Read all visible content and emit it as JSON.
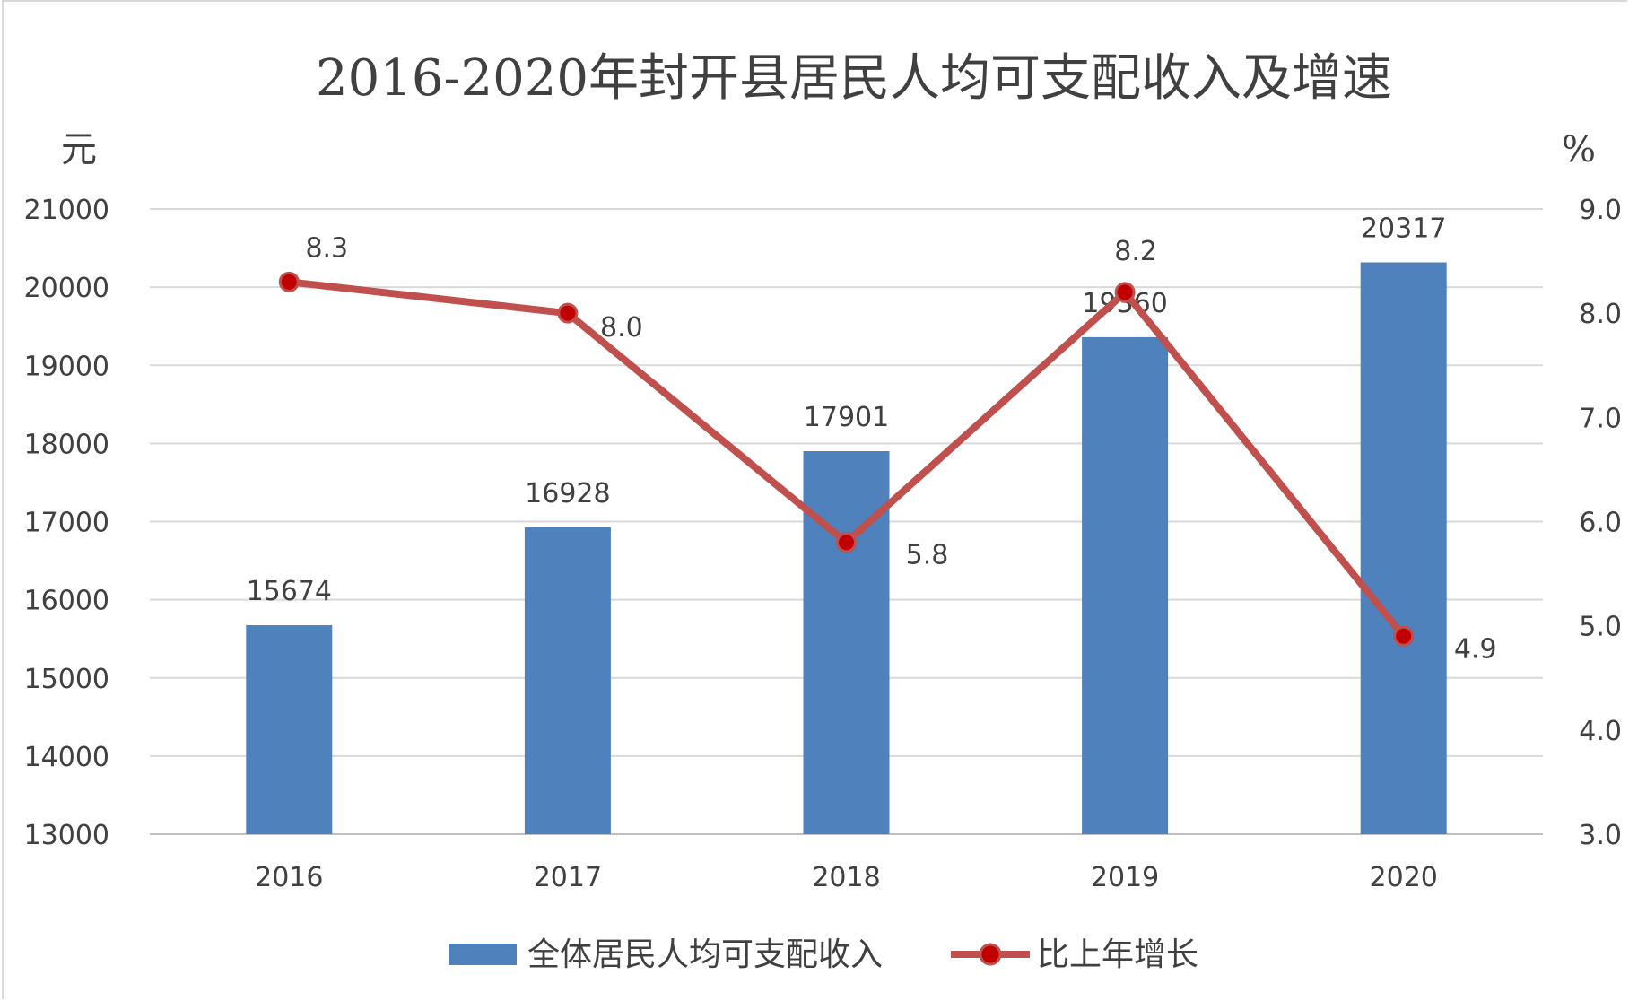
{
  "chart_data": {
    "type": "bar",
    "title": "2016-2020年封开县居民人均可支配收入及增速",
    "ylabel": "元",
    "y2label": "%",
    "categories": [
      "2016",
      "2017",
      "2018",
      "2019",
      "2020"
    ],
    "ylim": [
      13000,
      21000
    ],
    "yticks": [
      "21000",
      "20000",
      "19000",
      "18000",
      "17000",
      "16000",
      "15000",
      "14000",
      "13000"
    ],
    "y2lim": [
      3.0,
      9.0
    ],
    "y2ticks": [
      "9.0",
      "8.0",
      "7.0",
      "6.0",
      "5.0",
      "4.0",
      "3.0"
    ],
    "grid": true,
    "legend_position": "bottom",
    "series": [
      {
        "name": "全体居民人均可支配收入",
        "type": "bar",
        "axis": "left",
        "color": "#4f81bd",
        "values": [
          15674,
          16928,
          17901,
          19360,
          20317
        ],
        "labels": [
          "15674",
          "16928",
          "17901",
          "19360",
          "20317"
        ]
      },
      {
        "name": "比上年增长",
        "type": "line",
        "axis": "right",
        "color": "#c0504d",
        "marker_color": "#c00000",
        "values": [
          8.3,
          8.0,
          5.8,
          8.2,
          4.9
        ],
        "labels": [
          "8.3",
          "8.0",
          "5.8",
          "8.2",
          "4.9"
        ]
      }
    ]
  }
}
